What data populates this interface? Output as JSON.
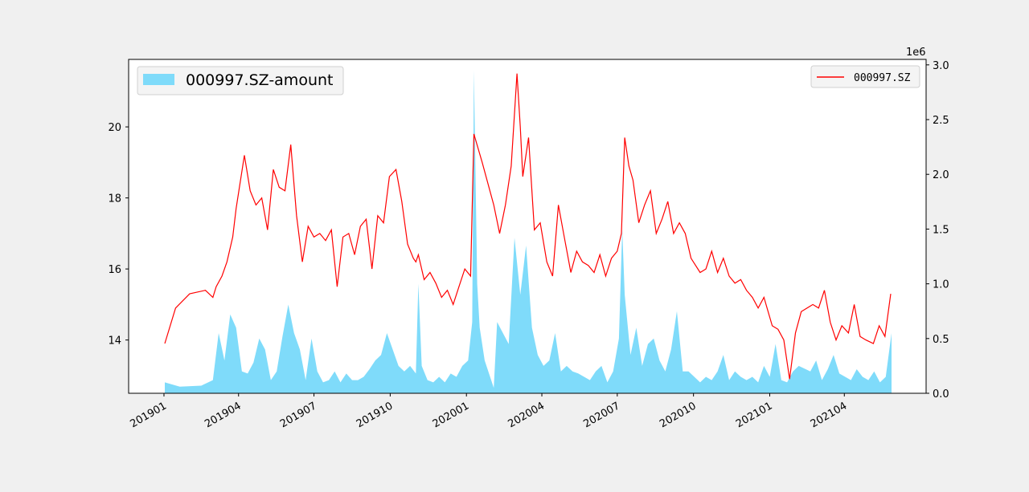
{
  "chart_data": {
    "type": "line",
    "title": "",
    "multiplier_label": "1e6",
    "grid": false,
    "x_ticks": [
      "201901",
      "201904",
      "201907",
      "201910",
      "202001",
      "202004",
      "202007",
      "202010",
      "202101",
      "202104"
    ],
    "left_axis": {
      "ylim": [
        12.5,
        21.9
      ],
      "ticks": [
        "14",
        "16",
        "18",
        "20"
      ],
      "tick_values": [
        14,
        16,
        18,
        20
      ]
    },
    "right_axis": {
      "ylim": [
        0,
        3.05
      ],
      "ticks": [
        "0.0",
        "0.5",
        "1.0",
        "1.5",
        "2.0",
        "2.5",
        "3.0"
      ],
      "tick_values": [
        0,
        0.5,
        1.0,
        1.5,
        2.0,
        2.5,
        3.0
      ]
    },
    "series": [
      {
        "name": "000997.SZ",
        "kind": "line",
        "axis": "left",
        "color": "#ff0000",
        "legend_position": "upper right",
        "x": [
          "2019-01-02",
          "2019-01-15",
          "2019-02-01",
          "2019-02-20",
          "2019-03-01",
          "2019-03-05",
          "2019-03-12",
          "2019-03-18",
          "2019-03-25",
          "2019-03-29",
          "2019-04-08",
          "2019-04-15",
          "2019-04-22",
          "2019-04-29",
          "2019-05-06",
          "2019-05-13",
          "2019-05-20",
          "2019-05-27",
          "2019-06-03",
          "2019-06-10",
          "2019-06-17",
          "2019-06-24",
          "2019-07-01",
          "2019-07-08",
          "2019-07-15",
          "2019-07-22",
          "2019-07-29",
          "2019-08-05",
          "2019-08-12",
          "2019-08-19",
          "2019-08-26",
          "2019-09-02",
          "2019-09-09",
          "2019-09-16",
          "2019-09-23",
          "2019-09-30",
          "2019-10-08",
          "2019-10-15",
          "2019-10-22",
          "2019-10-29",
          "2019-11-01",
          "2019-11-04",
          "2019-11-11",
          "2019-11-18",
          "2019-11-25",
          "2019-12-02",
          "2019-12-09",
          "2019-12-16",
          "2019-12-23",
          "2019-12-30",
          "2020-01-06",
          "2020-01-10",
          "2020-01-20",
          "2020-02-03",
          "2020-02-10",
          "2020-02-17",
          "2020-02-24",
          "2020-03-02",
          "2020-03-06",
          "2020-03-09",
          "2020-03-16",
          "2020-03-23",
          "2020-03-30",
          "2020-04-07",
          "2020-04-14",
          "2020-04-21",
          "2020-04-28",
          "2020-05-06",
          "2020-05-13",
          "2020-05-20",
          "2020-05-27",
          "2020-06-03",
          "2020-06-10",
          "2020-06-17",
          "2020-06-24",
          "2020-07-01",
          "2020-07-06",
          "2020-07-10",
          "2020-07-15",
          "2020-07-20",
          "2020-07-27",
          "2020-08-03",
          "2020-08-10",
          "2020-08-17",
          "2020-08-24",
          "2020-08-31",
          "2020-09-07",
          "2020-09-14",
          "2020-09-21",
          "2020-09-28",
          "2020-10-09",
          "2020-10-16",
          "2020-10-23",
          "2020-10-30",
          "2020-11-06",
          "2020-11-13",
          "2020-11-20",
          "2020-11-27",
          "2020-12-04",
          "2020-12-11",
          "2020-12-18",
          "2020-12-25",
          "2021-01-04",
          "2021-01-11",
          "2021-01-18",
          "2021-01-25",
          "2021-02-01",
          "2021-02-08",
          "2021-02-22",
          "2021-03-01",
          "2021-03-08",
          "2021-03-15",
          "2021-03-22",
          "2021-03-29",
          "2021-04-06",
          "2021-04-13",
          "2021-04-20",
          "2021-04-27",
          "2021-05-06",
          "2021-05-13",
          "2021-05-20",
          "2021-05-27"
        ],
        "y": [
          13.9,
          14.9,
          15.3,
          15.4,
          15.2,
          15.5,
          15.8,
          16.2,
          16.9,
          17.7,
          19.2,
          18.2,
          17.8,
          18.0,
          17.1,
          18.8,
          18.3,
          18.2,
          19.5,
          17.5,
          16.2,
          17.2,
          16.9,
          17.0,
          16.8,
          17.1,
          15.5,
          16.9,
          17.0,
          16.4,
          17.2,
          17.4,
          16.0,
          17.5,
          17.3,
          18.6,
          18.8,
          17.9,
          16.7,
          16.3,
          16.2,
          16.4,
          15.7,
          15.9,
          15.6,
          15.2,
          15.4,
          15.0,
          15.5,
          16.0,
          15.8,
          19.8,
          19.0,
          17.8,
          17.0,
          17.8,
          18.9,
          21.5,
          20.0,
          18.6,
          19.7,
          17.1,
          17.3,
          16.2,
          15.8,
          17.8,
          16.9,
          15.9,
          16.5,
          16.2,
          16.1,
          15.9,
          16.4,
          15.8,
          16.3,
          16.5,
          17.0,
          19.7,
          18.9,
          18.5,
          17.3,
          17.8,
          18.2,
          17.0,
          17.4,
          17.9,
          17.0,
          17.3,
          17.0,
          16.3,
          15.9,
          16.0,
          16.5,
          15.9,
          16.3,
          15.8,
          15.6,
          15.7,
          15.4,
          15.2,
          14.9,
          15.2,
          14.4,
          14.3,
          14.0,
          12.9,
          14.2,
          14.8,
          15.0,
          14.9,
          15.4,
          14.5,
          14.0,
          14.4,
          14.2,
          15.0,
          14.1,
          14.0,
          13.9,
          14.4,
          14.1,
          15.3
        ]
      },
      {
        "name": "000997.SZ-amount",
        "kind": "area",
        "axis": "right",
        "color": "#7fdbfa",
        "legend_position": "upper left",
        "x": [
          "2019-01-02",
          "2019-01-20",
          "2019-02-15",
          "2019-03-01",
          "2019-03-08",
          "2019-03-15",
          "2019-03-22",
          "2019-03-29",
          "2019-04-05",
          "2019-04-12",
          "2019-04-19",
          "2019-04-26",
          "2019-05-03",
          "2019-05-10",
          "2019-05-17",
          "2019-05-24",
          "2019-05-31",
          "2019-06-07",
          "2019-06-14",
          "2019-06-21",
          "2019-06-28",
          "2019-07-05",
          "2019-07-12",
          "2019-07-19",
          "2019-07-26",
          "2019-08-02",
          "2019-08-09",
          "2019-08-16",
          "2019-08-23",
          "2019-08-30",
          "2019-09-06",
          "2019-09-13",
          "2019-09-20",
          "2019-09-27",
          "2019-10-11",
          "2019-10-18",
          "2019-10-25",
          "2019-11-01",
          "2019-11-04",
          "2019-11-08",
          "2019-11-15",
          "2019-11-22",
          "2019-11-29",
          "2019-12-06",
          "2019-12-13",
          "2019-12-20",
          "2019-12-27",
          "2020-01-03",
          "2020-01-08",
          "2020-01-10",
          "2020-01-14",
          "2020-01-17",
          "2020-01-23",
          "2020-02-03",
          "2020-02-07",
          "2020-02-14",
          "2020-02-21",
          "2020-02-28",
          "2020-03-06",
          "2020-03-13",
          "2020-03-20",
          "2020-03-27",
          "2020-04-03",
          "2020-04-10",
          "2020-04-17",
          "2020-04-24",
          "2020-05-01",
          "2020-05-08",
          "2020-05-15",
          "2020-05-22",
          "2020-05-29",
          "2020-06-05",
          "2020-06-12",
          "2020-06-19",
          "2020-06-26",
          "2020-07-03",
          "2020-07-07",
          "2020-07-10",
          "2020-07-17",
          "2020-07-24",
          "2020-07-31",
          "2020-08-07",
          "2020-08-14",
          "2020-08-21",
          "2020-08-28",
          "2020-09-04",
          "2020-09-11",
          "2020-09-18",
          "2020-09-25",
          "2020-10-09",
          "2020-10-16",
          "2020-10-23",
          "2020-10-30",
          "2020-11-06",
          "2020-11-13",
          "2020-11-20",
          "2020-11-27",
          "2020-12-04",
          "2020-12-11",
          "2020-12-18",
          "2020-12-25",
          "2021-01-01",
          "2021-01-08",
          "2021-01-15",
          "2021-01-22",
          "2021-01-29",
          "2021-02-05",
          "2021-02-19",
          "2021-02-26",
          "2021-03-05",
          "2021-03-12",
          "2021-03-19",
          "2021-03-26",
          "2021-04-02",
          "2021-04-09",
          "2021-04-16",
          "2021-04-23",
          "2021-04-30",
          "2021-05-07",
          "2021-05-14",
          "2021-05-21",
          "2021-05-28"
        ],
        "y": [
          0.1,
          0.06,
          0.07,
          0.12,
          0.55,
          0.3,
          0.72,
          0.6,
          0.2,
          0.18,
          0.28,
          0.5,
          0.4,
          0.12,
          0.2,
          0.52,
          0.81,
          0.55,
          0.4,
          0.12,
          0.5,
          0.2,
          0.1,
          0.12,
          0.2,
          0.1,
          0.18,
          0.12,
          0.12,
          0.15,
          0.22,
          0.3,
          0.35,
          0.55,
          0.25,
          0.2,
          0.25,
          0.18,
          1.0,
          0.25,
          0.12,
          0.1,
          0.15,
          0.1,
          0.18,
          0.15,
          0.25,
          0.3,
          0.65,
          2.95,
          1.0,
          0.6,
          0.3,
          0.05,
          0.65,
          0.55,
          0.45,
          1.42,
          0.9,
          1.35,
          0.6,
          0.35,
          0.25,
          0.3,
          0.55,
          0.2,
          0.25,
          0.2,
          0.18,
          0.15,
          0.12,
          0.2,
          0.25,
          0.1,
          0.2,
          0.5,
          1.5,
          0.9,
          0.35,
          0.6,
          0.25,
          0.45,
          0.5,
          0.3,
          0.2,
          0.4,
          0.75,
          0.2,
          0.2,
          0.1,
          0.15,
          0.12,
          0.2,
          0.35,
          0.12,
          0.2,
          0.15,
          0.12,
          0.15,
          0.1,
          0.25,
          0.15,
          0.45,
          0.12,
          0.1,
          0.2,
          0.25,
          0.2,
          0.3,
          0.12,
          0.22,
          0.35,
          0.18,
          0.15,
          0.12,
          0.22,
          0.15,
          0.12,
          0.2,
          0.1,
          0.15,
          0.55
        ]
      }
    ]
  }
}
